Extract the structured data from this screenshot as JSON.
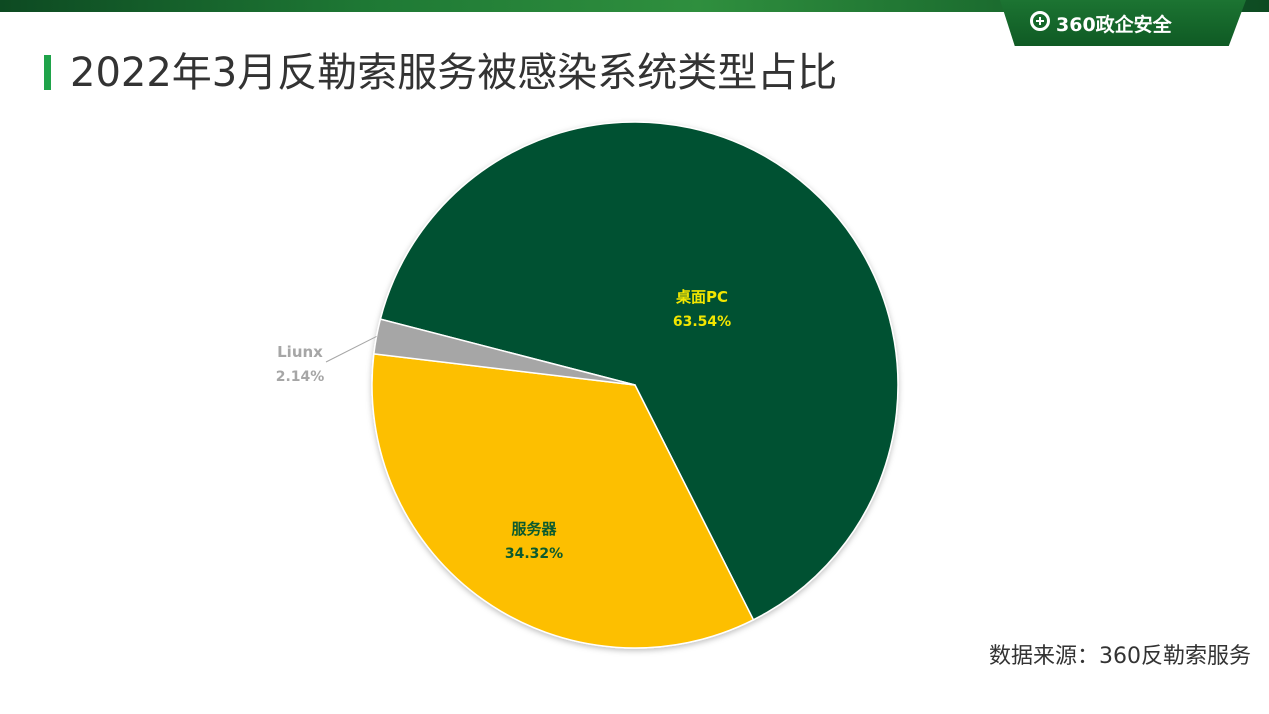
{
  "header": {
    "logo_text": "360政企安全",
    "title": "2022年3月反勒索服务被感染系统类型占比"
  },
  "chart_data": {
    "type": "pie",
    "title": "2022年3月反勒索服务被感染系统类型占比",
    "slices": [
      {
        "label": "桌面PC",
        "value": 63.54,
        "value_label": "63.54%",
        "color": "#065130",
        "label_color": "#f2e600"
      },
      {
        "label": "服务器",
        "value": 34.32,
        "value_label": "34.32%",
        "color": "#fdbf00",
        "label_color": "#0b5a2e"
      },
      {
        "label": "Liunx",
        "value": 2.14,
        "value_label": "2.14%",
        "color": "#a6a6a6",
        "label_color": "#a6a6a6"
      }
    ]
  },
  "footer": {
    "source": "数据来源：360反勒索服务"
  }
}
